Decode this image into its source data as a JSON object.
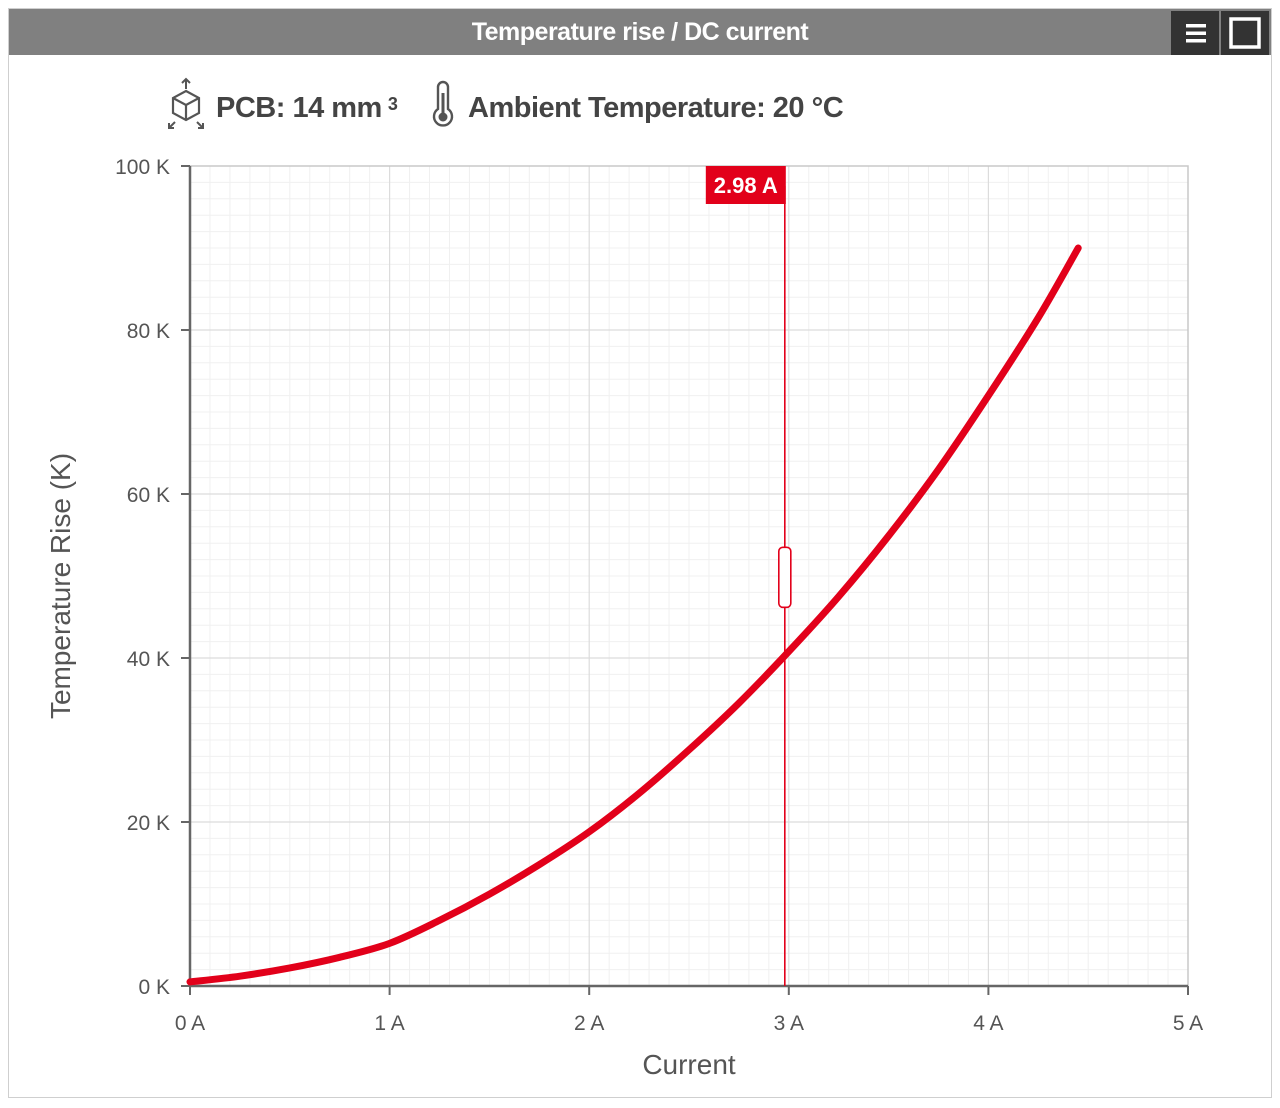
{
  "window": {
    "title": "Temperature rise / DC current",
    "menu_icon": "hamburger-menu-icon",
    "maximize_icon": "maximize-icon"
  },
  "info": {
    "pcb_label": "PCB: 14 mm",
    "pcb_exponent": "3",
    "pcb_icon": "cube-dimensions-icon",
    "ambient_label": "Ambient Temperature: 20 °C",
    "ambient_icon": "thermometer-icon"
  },
  "colors": {
    "series": "#e2001a",
    "titlebar": "#808080",
    "titlebar_buttons": "#333333",
    "grid": "#e6e6e6"
  },
  "chart_data": {
    "type": "line",
    "title": "",
    "xlabel": "Current",
    "ylabel": "Temperature Rise (K)",
    "xlim": [
      0,
      5
    ],
    "ylim": [
      0,
      100
    ],
    "x_ticks": [
      "0 A",
      "1 A",
      "2 A",
      "3 A",
      "4 A",
      "5 A"
    ],
    "y_ticks": [
      "0 K",
      "20 K",
      "40 K",
      "60 K",
      "80 K",
      "100 K"
    ],
    "grid": true,
    "legend": "none",
    "series": [
      {
        "x": [
          0,
          0.25,
          0.5,
          0.75,
          1.0,
          1.25,
          1.5,
          1.75,
          2.0,
          2.25,
          2.5,
          2.75,
          3.0,
          3.25,
          3.5,
          3.75,
          4.0,
          4.25,
          4.45
        ],
        "y": [
          0.5,
          1.2,
          2.2,
          3.5,
          5.2,
          8.0,
          11.2,
          14.8,
          18.8,
          23.5,
          28.8,
          34.5,
          40.8,
          47.5,
          54.9,
          63.0,
          72.0,
          81.5,
          90.0
        ]
      }
    ],
    "cursor": {
      "x": 2.98,
      "label": "2.98 A"
    }
  }
}
